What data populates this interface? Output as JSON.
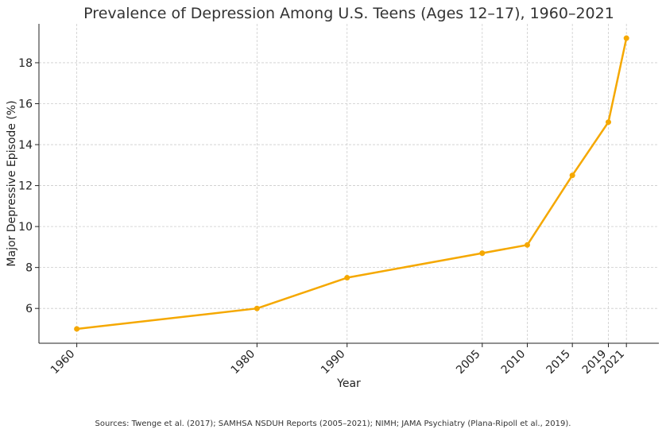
{
  "chart_data": {
    "type": "line",
    "title": "Prevalence of Depression Among U.S. Teens (Ages 12–17), 1960–2021",
    "xlabel": "Year",
    "ylabel": "Major Depressive Episode (%)",
    "x": [
      1960,
      1980,
      1990,
      2005,
      2010,
      2015,
      2019,
      2021
    ],
    "series": [
      {
        "values": [
          5.0,
          6.0,
          7.5,
          8.7,
          9.1,
          12.5,
          15.1,
          19.2
        ]
      }
    ],
    "xticks": [
      1960,
      1980,
      1990,
      2005,
      2010,
      2015,
      2019,
      2021
    ],
    "yticks": [
      6,
      8,
      10,
      12,
      14,
      16,
      18
    ],
    "xlim": [
      1955.8,
      2024.6
    ],
    "ylim": [
      4.3,
      19.9
    ],
    "grid": true,
    "color": "#f5a800"
  },
  "caption": "Sources: Twenge et al. (2017); SAMHSA NSDUH Reports (2005–2021); NIMH; JAMA Psychiatry (Plana-Ripoll et al., 2019)."
}
